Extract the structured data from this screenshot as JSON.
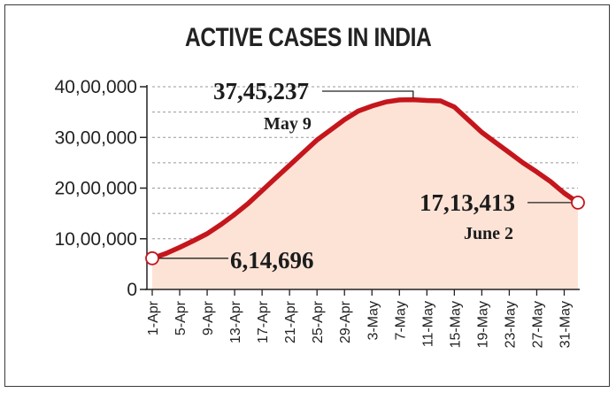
{
  "chart_data": {
    "type": "area",
    "title": "ACTIVE CASES IN INDIA",
    "xlabel": "",
    "ylabel": "",
    "ylim": [
      0,
      4000000
    ],
    "yticks": [
      {
        "value": 0,
        "label": "0"
      },
      {
        "value": 1000000,
        "label": "10,00,000"
      },
      {
        "value": 2000000,
        "label": "20,00,000"
      },
      {
        "value": 3000000,
        "label": "30,00,000"
      },
      {
        "value": 4000000,
        "label": "40,00,000"
      }
    ],
    "xtick_labels": [
      "1-Apr",
      "5-Apr",
      "9-Apr",
      "13-Apr",
      "17-Apr",
      "21-Apr",
      "25-Apr",
      "29-Apr",
      "3-May",
      "7-May",
      "11-May",
      "15-May",
      "19-May",
      "23-May",
      "27-May",
      "31-May"
    ],
    "grid": "horizontal dashed",
    "colors": {
      "line": "#c4161c",
      "fill": "#fde3d6",
      "grid": "#999999",
      "marker": "#c4161c"
    },
    "series": [
      {
        "x": [
          "1-Apr",
          "3-Apr",
          "5-Apr",
          "7-Apr",
          "9-Apr",
          "11-Apr",
          "13-Apr",
          "15-Apr",
          "17-Apr",
          "19-Apr",
          "21-Apr",
          "23-Apr",
          "25-Apr",
          "27-Apr",
          "29-Apr",
          "1-May",
          "3-May",
          "5-May",
          "7-May",
          "9-May",
          "11-May",
          "13-May",
          "15-May",
          "17-May",
          "19-May",
          "21-May",
          "23-May",
          "25-May",
          "27-May",
          "29-May",
          "31-May",
          "2-Jun"
        ],
        "values": [
          614696,
          710000,
          830000,
          960000,
          1100000,
          1280000,
          1480000,
          1700000,
          1950000,
          2200000,
          2450000,
          2700000,
          2950000,
          3150000,
          3350000,
          3520000,
          3620000,
          3700000,
          3740000,
          3745237,
          3730000,
          3720000,
          3600000,
          3350000,
          3100000,
          2900000,
          2700000,
          2500000,
          2320000,
          2130000,
          1900000,
          1713413
        ]
      }
    ],
    "annotations": [
      {
        "value_label": "37,45,237",
        "date_label": "May 9",
        "x": "9-May",
        "y": 3745237
      },
      {
        "value_label": "6,14,696",
        "x": "1-Apr",
        "y": 614696
      },
      {
        "value_label": "17,13,413",
        "date_label": "June 2",
        "x": "2-Jun",
        "y": 1713413
      }
    ]
  }
}
